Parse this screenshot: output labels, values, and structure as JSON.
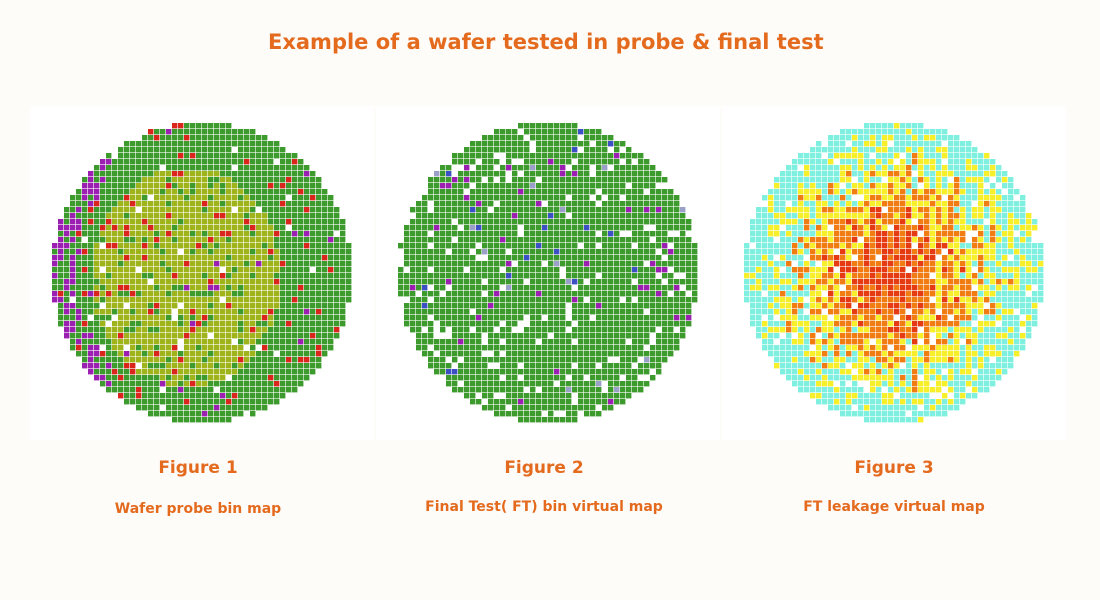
{
  "title": "Example of a wafer tested in probe & final test",
  "figures": [
    {
      "label": "Figure 1",
      "caption": "Wafer probe bin map",
      "map_type": "bin-map",
      "colors": {
        "pass": "#3d9a2d",
        "core": "#9fb41a",
        "fail_red": "#d9251b",
        "fail_purple": "#9b1fb0",
        "empty": "#ffffff"
      }
    },
    {
      "label": "Figure 2",
      "caption": "Final Test( FT) bin virtual map",
      "map_type": "bin-map",
      "colors": {
        "pass": "#3d9a2d",
        "fail_purple": "#9b1fb0",
        "fail_blue": "#3d4fc4",
        "fail_gray": "#9aa0c8",
        "empty": "#ffffff"
      }
    },
    {
      "label": "Figure 3",
      "caption": "FT leakage virtual map",
      "map_type": "heat-map",
      "colors": {
        "low": "#7ff0e0",
        "mid": "#f6ef2a",
        "high": "#f07c12",
        "max": "#e53a12",
        "empty": "#ffffff"
      }
    }
  ]
}
